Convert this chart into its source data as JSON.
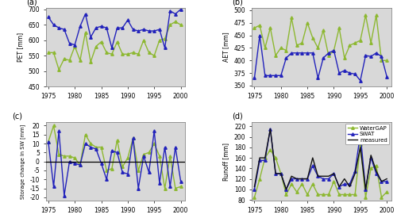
{
  "years": [
    1975,
    1976,
    1977,
    1978,
    1979,
    1980,
    1981,
    1982,
    1983,
    1984,
    1985,
    1986,
    1987,
    1988,
    1989,
    1990,
    1991,
    1992,
    1993,
    1994,
    1995,
    1996,
    1997,
    1998,
    1999,
    2000
  ],
  "PET_watergap": [
    560,
    560,
    505,
    540,
    535,
    580,
    535,
    625,
    530,
    580,
    595,
    560,
    555,
    595,
    555,
    555,
    560,
    555,
    600,
    560,
    550,
    600,
    605,
    650,
    660,
    650
  ],
  "PET_swat": [
    675,
    650,
    640,
    635,
    590,
    585,
    645,
    685,
    610,
    640,
    645,
    640,
    575,
    640,
    640,
    665,
    635,
    630,
    635,
    630,
    630,
    635,
    575,
    695,
    685,
    700
  ],
  "AET_watergap": [
    465,
    470,
    425,
    465,
    410,
    425,
    420,
    485,
    430,
    435,
    475,
    445,
    425,
    460,
    410,
    420,
    465,
    405,
    430,
    435,
    440,
    490,
    435,
    490,
    400,
    400
  ],
  "AET_swat": [
    365,
    450,
    370,
    370,
    370,
    370,
    405,
    415,
    415,
    415,
    415,
    415,
    365,
    405,
    415,
    420,
    375,
    380,
    375,
    373,
    360,
    410,
    408,
    415,
    408,
    368
  ],
  "SW_watergap": [
    11,
    20,
    4,
    3,
    3,
    2,
    -2,
    15,
    10,
    8,
    8,
    -5,
    -4,
    12,
    -3,
    2,
    13,
    -5,
    4,
    5,
    10,
    3,
    -15,
    3,
    -15,
    -14
  ],
  "SW_swat": [
    11,
    -14,
    17,
    -19,
    0,
    -1,
    -2,
    10,
    8,
    7,
    -1,
    -10,
    6,
    5,
    -6,
    -7,
    13,
    -15,
    3,
    -6,
    17,
    -12,
    8,
    -14,
    8,
    -11
  ],
  "Runoff_watergap": [
    85,
    120,
    160,
    175,
    160,
    130,
    90,
    110,
    95,
    110,
    90,
    110,
    90,
    90,
    90,
    115,
    90,
    90,
    90,
    90,
    185,
    85,
    140,
    145,
    85,
    95
  ],
  "Runoff_swat": [
    100,
    155,
    155,
    215,
    130,
    130,
    100,
    120,
    120,
    120,
    120,
    145,
    125,
    120,
    120,
    130,
    105,
    110,
    110,
    135,
    205,
    100,
    160,
    130,
    115,
    115
  ],
  "Runoff_measured": [
    105,
    160,
    160,
    215,
    130,
    130,
    100,
    125,
    120,
    120,
    120,
    160,
    125,
    125,
    125,
    130,
    105,
    120,
    105,
    130,
    180,
    100,
    165,
    135,
    115,
    120
  ],
  "color_watergap": "#8db831",
  "color_swat": "#2222bb",
  "color_measured": "#111111",
  "panel_labels": [
    "(a)",
    "(b)",
    "(c)",
    "(d)"
  ],
  "ylabels": [
    "PET [mm]",
    "AET [mm]",
    "Storage change in SW [mm]",
    "Runoff [mm]"
  ],
  "xlim": [
    1974.5,
    2000.8
  ],
  "PET_ylim": [
    450,
    705
  ],
  "AET_ylim": [
    348,
    505
  ],
  "SW_ylim": [
    -22,
    22
  ],
  "Runoff_ylim": [
    78,
    228
  ],
  "PET_yticks": [
    450,
    500,
    550,
    600,
    650,
    700
  ],
  "AET_yticks": [
    350,
    375,
    400,
    425,
    450,
    475,
    500
  ],
  "SW_yticks": [
    -20,
    -15,
    -10,
    -5,
    0,
    5,
    10,
    15,
    20
  ],
  "Runoff_yticks": [
    80,
    100,
    120,
    140,
    160,
    180,
    200,
    220
  ],
  "xticks": [
    1975,
    1980,
    1985,
    1990,
    1995,
    2000
  ],
  "legend_labels": [
    "WaterGAP",
    "SWAT",
    "measured"
  ],
  "bg_color": "#d8d8d8",
  "spine_color": "#888888"
}
